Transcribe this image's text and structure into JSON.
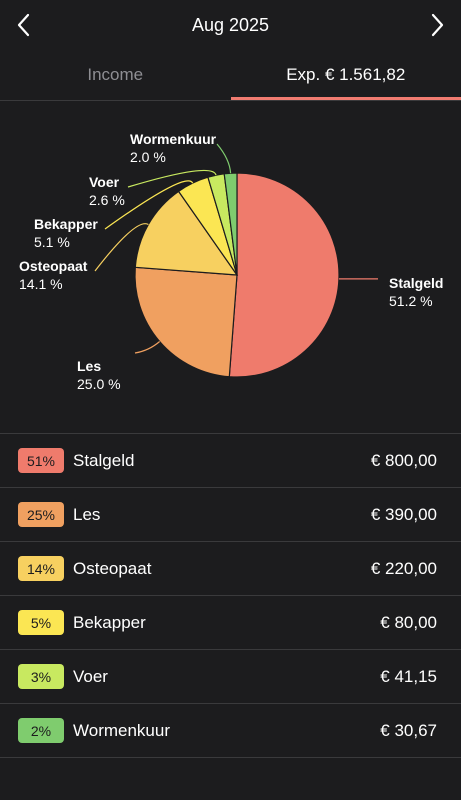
{
  "header": {
    "month": "Aug 2025",
    "prev_icon": "chevron-left-icon",
    "next_icon": "chevron-right-icon"
  },
  "tabs": {
    "income_label": "Income",
    "expense_label": "Exp. € 1.561,82",
    "active": "expense",
    "accent": "#f07b70"
  },
  "chart_data": {
    "type": "pie",
    "slices": [
      {
        "label": "Stalgeld",
        "pct_label": "51.2 %",
        "value": 51.2,
        "color": "#ef7b6c"
      },
      {
        "label": "Les",
        "pct_label": "25.0 %",
        "value": 25.0,
        "color": "#f0a060"
      },
      {
        "label": "Osteopaat",
        "pct_label": "14.1 %",
        "value": 14.1,
        "color": "#f7d060"
      },
      {
        "label": "Bekapper",
        "pct_label": "5.1 %",
        "value": 5.1,
        "color": "#fbe653"
      },
      {
        "label": "Voer",
        "pct_label": "2.6 %",
        "value": 2.6,
        "color": "#c8e960"
      },
      {
        "label": "Wormenkuur",
        "pct_label": "2.0 %",
        "value": 2.0,
        "color": "#7fcc6e"
      }
    ]
  },
  "categories": [
    {
      "pct": "51%",
      "name": "Stalgeld",
      "amount": "€ 800,00",
      "color": "#ef7b6c"
    },
    {
      "pct": "25%",
      "name": "Les",
      "amount": "€ 390,00",
      "color": "#f0a060"
    },
    {
      "pct": "14%",
      "name": "Osteopaat",
      "amount": "€ 220,00",
      "color": "#f7d060"
    },
    {
      "pct": "5%",
      "name": "Bekapper",
      "amount": "€ 80,00",
      "color": "#fbe653"
    },
    {
      "pct": "3%",
      "name": "Voer",
      "amount": "€ 41,15",
      "color": "#c8e960"
    },
    {
      "pct": "2%",
      "name": "Wormenkuur",
      "amount": "€ 30,67",
      "color": "#7fcc6e"
    }
  ]
}
